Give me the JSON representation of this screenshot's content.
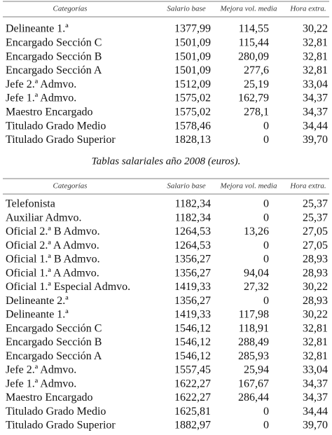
{
  "tables": [
    {
      "header": [
        "Categorías",
        "Salario base",
        "Mejora vol. media",
        "Hora extra."
      ],
      "rows": [
        [
          "Delineante 1.ª",
          "1377,99",
          "114,55",
          "30,22"
        ],
        [
          "Encargado Sección C",
          "1501,09",
          "115,44",
          "32,81"
        ],
        [
          "Encargado Sección B",
          "1501,09",
          "280,09",
          "32,81"
        ],
        [
          "Encargado Sección A",
          "1501,09",
          "277,6",
          "32,81"
        ],
        [
          "Jefe 2.ª Admvo.",
          "1512,09",
          "25,19",
          "33,04"
        ],
        [
          "Jefe 1.ª Admvo.",
          "1575,02",
          "162,79",
          "34,37"
        ],
        [
          "Maestro Encargado",
          "1575,02",
          "278,1",
          "34,37"
        ],
        [
          "Titulado Grado Medio",
          "1578,46",
          "0",
          "34,44"
        ],
        [
          "Titulado Grado Superior",
          "1828,13",
          "0",
          "39,70"
        ]
      ]
    },
    {
      "header": [
        "Categorías",
        "Salario base",
        "Mejora vol. media",
        "Hora extra."
      ],
      "rows": [
        [
          "Telefonista",
          "1182,34",
          "0",
          "25,37"
        ],
        [
          "Auxiliar Admvo.",
          "1182,34",
          "0",
          "25,37"
        ],
        [
          "Oficial 2.ª B Admvo.",
          "1264,53",
          "13,26",
          "27,05"
        ],
        [
          "Oficial 2.ª A Admvo.",
          "1264,53",
          "0",
          "27,05"
        ],
        [
          "Oficial 1.ª B Admvo.",
          "1356,27",
          "0",
          "28,93"
        ],
        [
          "Oficial 1.ª A Admvo.",
          "1356,27",
          "94,04",
          "28,93"
        ],
        [
          "Oficial 1.ª Especial Admvo.",
          "1419,33",
          "27,32",
          "30,22"
        ],
        [
          "Delineante 2.ª",
          "1356,27",
          "0",
          "28,93"
        ],
        [
          "Delineante 1.ª",
          "1419,33",
          "117,98",
          "30,22"
        ],
        [
          "Encargado Sección C",
          "1546,12",
          "118,91",
          "32,81"
        ],
        [
          "Encargado Sección B",
          "1546,12",
          "288,49",
          "32,81"
        ],
        [
          "Encargado Sección A",
          "1546,12",
          "285,93",
          "32,81"
        ],
        [
          "Jefe 2.ª Admvo.",
          "1557,45",
          "25,94",
          "33,04"
        ],
        [
          "Jefe 1.ª Admvo.",
          "1622,27",
          "167,67",
          "34,37"
        ],
        [
          "Maestro Encargado",
          "1622,27",
          "286,44",
          "34,37"
        ],
        [
          "Titulado Grado Medio",
          "1625,81",
          "0",
          "34,44"
        ],
        [
          "Titulado Grado Superior",
          "1882,97",
          "0",
          "39,70"
        ]
      ]
    }
  ],
  "caption": "Tablas salariales año 2008 (euros)."
}
